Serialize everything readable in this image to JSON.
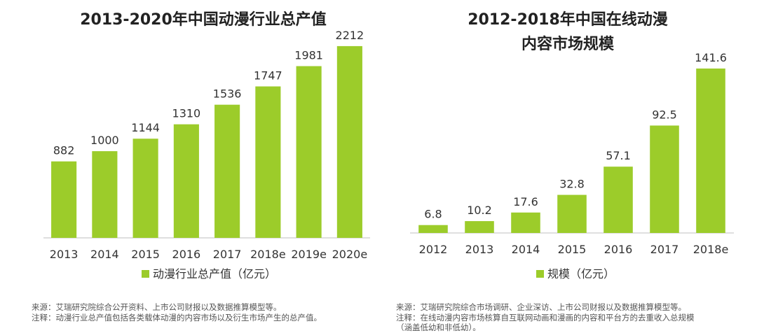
{
  "colors": {
    "bar": "#9ccc2a",
    "axis": "#bfbfbf",
    "text": "#333333"
  },
  "chart_data": [
    {
      "type": "bar",
      "title": "2013-2020年中国动漫行业总产值",
      "categories": [
        "2013",
        "2014",
        "2015",
        "2016",
        "2017",
        "2018e",
        "2019e",
        "2020e"
      ],
      "series": [
        {
          "name": "动漫行业总产值（亿元）",
          "values": [
            882,
            1000,
            1144,
            1310,
            1536,
            1747,
            1981,
            2212
          ]
        }
      ],
      "ylim": [
        0,
        2300
      ],
      "legend": "bottom-center",
      "notes": {
        "source": "来源：艾瑞研究院综合公开资料、上市公司财报以及数据推算模型等。",
        "remark": "注释：动漫行业总产值包括各类载体动漫的内容市场以及衍生市场产生的总产值。"
      }
    },
    {
      "type": "bar",
      "title_lines": [
        "2012-2018年中国在线动漫",
        "内容市场规模"
      ],
      "categories": [
        "2012",
        "2013",
        "2014",
        "2015",
        "2016",
        "2017",
        "2018e"
      ],
      "series": [
        {
          "name": "规模（亿元）",
          "values": [
            6.8,
            10.2,
            17.6,
            32.8,
            57.1,
            92.5,
            141.6
          ]
        }
      ],
      "ylim": [
        0,
        150
      ],
      "legend": "bottom-center",
      "notes": {
        "source": "来源：艾瑞研究院综合市场调研、企业深访、上市公司财报以及数据推算模型等。",
        "remark": "注释：在线动漫内容市场核算自互联网动画和漫画的内容和平台方的去重收入总规模",
        "remark2": "（涵盖低幼和非低幼）。"
      }
    }
  ]
}
